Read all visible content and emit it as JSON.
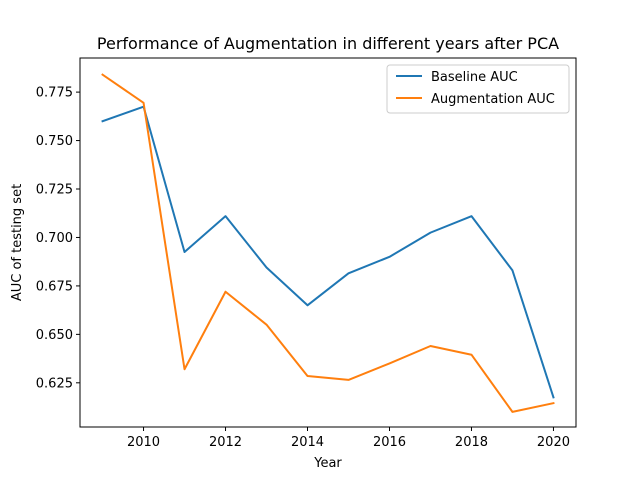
{
  "chart_data": {
    "type": "line",
    "title": "Performance of Augmentation in different years after PCA",
    "xlabel": "Year",
    "ylabel": "AUC of testing set",
    "x": [
      2009,
      2010,
      2011,
      2012,
      2013,
      2014,
      2015,
      2016,
      2017,
      2018,
      2019,
      2020
    ],
    "xlim": [
      2008.45,
      2020.55
    ],
    "ylim": [
      0.6022,
      0.7926
    ],
    "xticks": [
      2010,
      2012,
      2014,
      2016,
      2018,
      2020
    ],
    "yticks": [
      0.625,
      0.65,
      0.675,
      0.7,
      0.725,
      0.75,
      0.775
    ],
    "ytick_labels": [
      "0.625",
      "0.650",
      "0.675",
      "0.700",
      "0.725",
      "0.750",
      "0.775"
    ],
    "grid": false,
    "legend_position": "upper right",
    "series": [
      {
        "name": "Baseline AUC",
        "color": "#1f77b4",
        "values": [
          0.76,
          0.7675,
          0.6925,
          0.711,
          0.6845,
          0.665,
          0.6815,
          0.69,
          0.7025,
          0.711,
          0.683,
          0.6175
        ]
      },
      {
        "name": "Augmentation AUC",
        "color": "#ff7f0e",
        "values": [
          0.784,
          0.7695,
          0.632,
          0.672,
          0.655,
          0.6285,
          0.6265,
          0.635,
          0.644,
          0.6395,
          0.61,
          0.6145
        ]
      }
    ]
  }
}
